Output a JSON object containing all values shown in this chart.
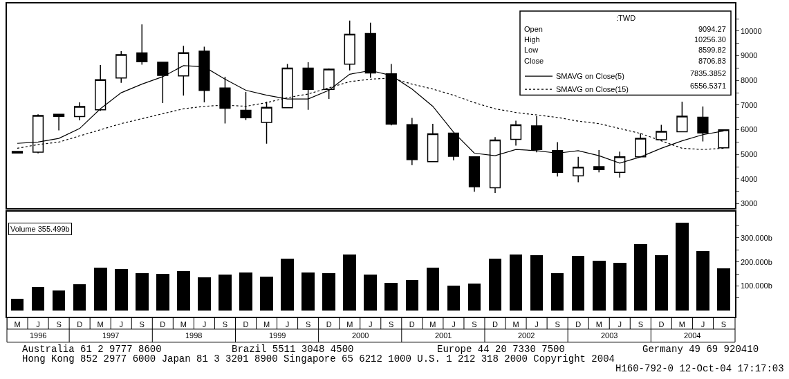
{
  "chart_data": [
    {
      "type": "candlestick",
      "ohlc": [
        [
          5120,
          5120,
          5060,
          5060
        ],
        [
          5090,
          6625,
          5045,
          6580
        ],
        [
          6625,
          6625,
          5975,
          6540
        ],
        [
          6535,
          7110,
          6380,
          6940
        ],
        [
          6810,
          8625,
          6765,
          8030
        ],
        [
          8100,
          9185,
          7900,
          9045
        ],
        [
          9115,
          10270,
          8640,
          8755
        ],
        [
          8735,
          8735,
          7080,
          8205
        ],
        [
          8180,
          9405,
          7385,
          9125
        ],
        [
          9185,
          9365,
          7110,
          7595
        ],
        [
          7690,
          8150,
          6255,
          6875
        ],
        [
          6785,
          7530,
          6395,
          6490
        ],
        [
          6300,
          7140,
          5435,
          6905
        ],
        [
          6895,
          8670,
          6880,
          8500
        ],
        [
          8500,
          8735,
          6810,
          7640
        ],
        [
          7640,
          8485,
          7250,
          8455
        ],
        [
          8660,
          10425,
          8410,
          9870
        ],
        [
          9900,
          10345,
          8105,
          8300
        ],
        [
          8270,
          8670,
          6180,
          6225
        ],
        [
          6205,
          6480,
          4570,
          4790
        ],
        [
          4710,
          6245,
          4710,
          5835
        ],
        [
          5865,
          5865,
          4765,
          4925
        ],
        [
          4905,
          4905,
          3485,
          3690
        ],
        [
          3650,
          5705,
          3440,
          5585
        ],
        [
          5610,
          6365,
          5360,
          6200
        ],
        [
          6160,
          6550,
          5085,
          5200
        ],
        [
          5155,
          5500,
          4105,
          4275
        ],
        [
          4135,
          4900,
          3875,
          4485
        ],
        [
          4505,
          5175,
          4275,
          4385
        ],
        [
          4275,
          5110,
          4060,
          4905
        ],
        [
          4900,
          5855,
          4900,
          5655
        ],
        [
          5595,
          6200,
          5570,
          5930
        ],
        [
          5920,
          7140,
          5920,
          6550
        ],
        [
          6505,
          6940,
          5530,
          5870
        ],
        [
          5270,
          5995,
          5270,
          5995
        ]
      ],
      "colors": [
        "#000000",
        "#ffffff",
        "#000000",
        "#ffffff",
        "#ffffff",
        "#ffffff",
        "#000000",
        "#000000",
        "#ffffff",
        "#000000",
        "#000000",
        "#000000",
        "#ffffff",
        "#ffffff",
        "#000000",
        "#ffffff",
        "#ffffff",
        "#000000",
        "#000000",
        "#000000",
        "#ffffff",
        "#000000",
        "#000000",
        "#ffffff",
        "#ffffff",
        "#000000",
        "#000000",
        "#ffffff",
        "#000000",
        "#ffffff",
        "#ffffff",
        "#ffffff",
        "#ffffff",
        "#000000",
        "#ffffff"
      ],
      "series": [
        {
          "type": "line",
          "name": "SMAVG on Close(5)",
          "color": "#000000",
          "line_style": "solid",
          "values": [
            5450,
            5500,
            5650,
            6050,
            6850,
            7500,
            7850,
            8150,
            8600,
            8550,
            8050,
            7600,
            7400,
            7250,
            7250,
            7600,
            8250,
            8400,
            8200,
            7650,
            6950,
            5900,
            5050,
            4950,
            5200,
            5150,
            5050,
            5150,
            4950,
            4650,
            4900,
            5250,
            5550,
            5800,
            5950
          ]
        },
        {
          "type": "line",
          "name": "SMAVG on Close(15)",
          "color": "#000000",
          "line_style": "dotted",
          "values": [
            5250,
            5400,
            5500,
            5750,
            6000,
            6250,
            6450,
            6650,
            6850,
            6950,
            7000,
            6950,
            7100,
            7300,
            7450,
            7700,
            7950,
            8050,
            8100,
            7850,
            7650,
            7400,
            7100,
            6850,
            6700,
            6600,
            6500,
            6350,
            6250,
            6050,
            5850,
            5550,
            5250,
            5200,
            5250
          ]
        }
      ],
      "ylim": [
        2830,
        11120
      ],
      "yticks": [
        3000,
        {
          "value": 3500,
          "label": null
        },
        4000,
        {
          "value": 4500,
          "label": null
        },
        5000,
        {
          "value": 5500,
          "label": null
        },
        6000,
        {
          "value": 6500,
          "label": null
        },
        7000,
        {
          "value": 7500,
          "label": null
        },
        8000,
        {
          "value": 8500,
          "label": null
        },
        9000,
        {
          "value": 9500,
          "label": null
        },
        10000,
        {
          "value": 10500,
          "label": null
        }
      ],
      "tick_labels": "y",
      "legend": "top right",
      "annotations": [
        ":TWD",
        "Open",
        "9094.27",
        "High",
        "10256.30",
        "Low",
        "8599.82",
        "Close",
        "8706.83",
        "7835.3852",
        "6556.5371"
      ]
    },
    {
      "type": "bar",
      "categories": [
        "M",
        "J",
        "S",
        "D",
        "M",
        "J",
        "S",
        "D",
        "M",
        "J",
        "S",
        "D",
        "M",
        "J",
        "S",
        "D",
        "M",
        "J",
        "S",
        "D",
        "M",
        "J",
        "S",
        "D",
        "M",
        "J",
        "S",
        "D",
        "M",
        "J",
        "S",
        "D",
        "M",
        "J",
        "S"
      ],
      "values": [
        47,
        98,
        82,
        107,
        178,
        171,
        154,
        151,
        163,
        138,
        147,
        158,
        139,
        215,
        158,
        155,
        231,
        147,
        114,
        126,
        178,
        102,
        111,
        215,
        233,
        230,
        154,
        227,
        206,
        198,
        274,
        230,
        363,
        246,
        175
      ],
      "color": "#000000",
      "ylim": [
        -28,
        410
      ],
      "yticks": [
        {
          "value": 50,
          "label": null
        },
        {
          "value": 100,
          "label": "100.000b"
        },
        {
          "value": 150,
          "label": null
        },
        {
          "value": 200,
          "label": "200.000b"
        },
        {
          "value": 250,
          "label": null
        },
        {
          "value": 300,
          "label": "300.000b"
        },
        {
          "value": 350,
          "label": null
        }
      ],
      "annotations": [
        "Volume 355.499b",
        "1996",
        "1997",
        "1998",
        "1999",
        "2000",
        "2001",
        "2002",
        "2003",
        "2004",
        "Australia 61 2 9777 8600",
        "Brazil 5511 3048 4500",
        "Europe 44 20 7330 7500",
        "Germany 49 69 920410",
        "Hong Kong 852 2977 6000 Japan 81 3 3201 8900 Singapore 65 6212 1000 U.S. 1 212 318 2000 Copyright 2004",
        "H160-792-0 12-Oct-04 17:17:03"
      ]
    }
  ]
}
